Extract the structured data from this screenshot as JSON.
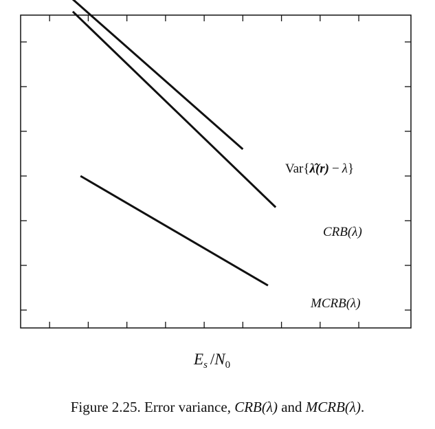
{
  "chart_data": {
    "type": "line",
    "xlabel": "E_s / N_0",
    "ylabel": "",
    "grid": false,
    "x": [
      0,
      10
    ],
    "series": [
      {
        "name": "Var{λ̂(r) − λ}",
        "x": [
          0.5,
          5.0
        ],
        "values": [
          7.03,
          3.6
        ]
      },
      {
        "name": "CRB(λ)",
        "x": [
          0.6,
          5.85
        ],
        "values": [
          6.68,
          2.3
        ]
      },
      {
        "name": "MCRB(λ)",
        "x": [
          0.8,
          5.65
        ],
        "values": [
          3.0,
          0.55
        ]
      }
    ],
    "xlim": [
      -0.75,
      9.35
    ],
    "ylim": [
      -0.4,
      6.6
    ]
  },
  "labels": {
    "var": {
      "prefix": "Var",
      "lbrace": "{",
      "lambda_hat": "λ̂",
      "paren_r": "(r)",
      "minus": "−",
      "lambda": "λ",
      "rbrace": "}"
    },
    "crb": "CRB(λ)",
    "mcrb": "MCRB(λ)"
  },
  "axis_label": {
    "E": "E",
    "s": "s",
    "slash": "/",
    "N": "N",
    "zero": "0"
  },
  "caption": {
    "prefix": "Figure 2.25. Error variance,",
    "crb": "CRB(λ)",
    "and": "and",
    "mcrb": "MCRB(λ)",
    "period": "."
  }
}
